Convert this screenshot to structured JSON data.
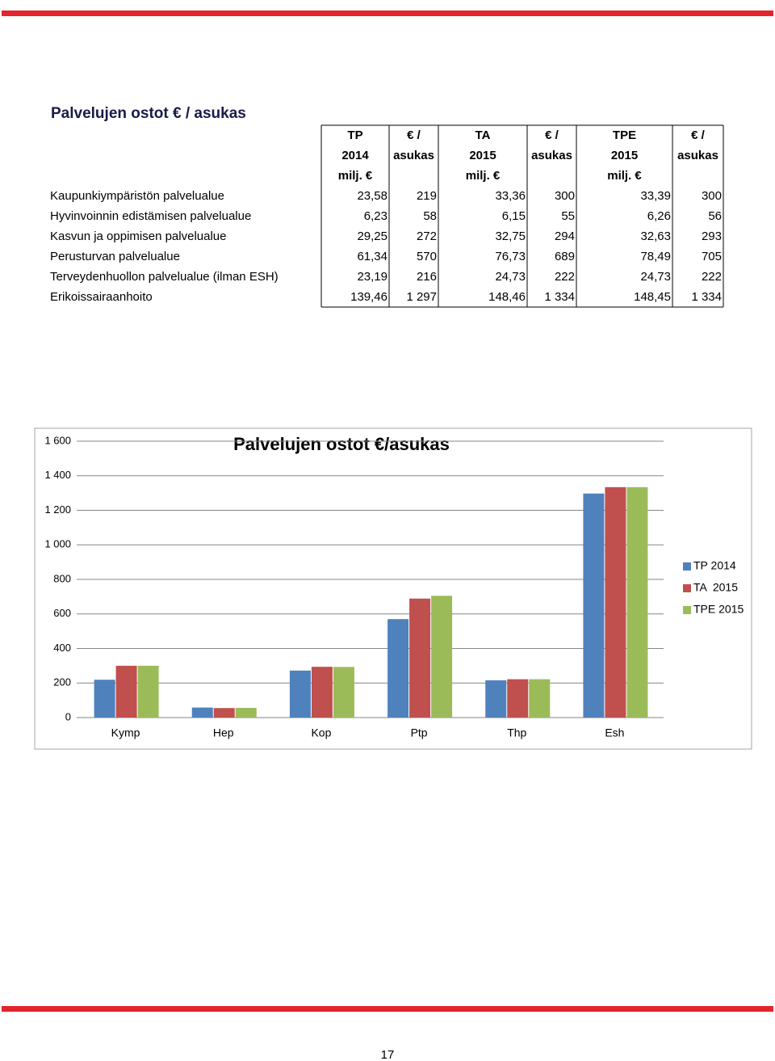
{
  "heading": "Palvelujen ostot € / asukas",
  "table": {
    "header": [
      [
        "TP",
        "2014",
        "milj. €"
      ],
      [
        "€ /",
        "asukas"
      ],
      [
        "TA",
        "2015",
        "milj. €"
      ],
      [
        "€ /",
        "asukas"
      ],
      [
        "TPE",
        "2015",
        "milj. €"
      ],
      [
        "€ /",
        "asukas"
      ]
    ],
    "rows": [
      [
        "Kaupunkiympäristön palvelualue",
        "23,58",
        "219",
        "33,36",
        "300",
        "33,39",
        "300"
      ],
      [
        "Hyvinvoinnin edistämisen palvelualue",
        "6,23",
        "58",
        "6,15",
        "55",
        "6,26",
        "56"
      ],
      [
        "Kasvun ja oppimisen palvelualue",
        "29,25",
        "272",
        "32,75",
        "294",
        "32,63",
        "293"
      ],
      [
        "Perusturvan palvelualue",
        "61,34",
        "570",
        "76,73",
        "689",
        "78,49",
        "705"
      ],
      [
        "Terveydenhuollon palvelualue (ilman ESH)",
        "23,19",
        "216",
        "24,73",
        "222",
        "24,73",
        "222"
      ],
      [
        "Erikoissairaanhoito",
        "139,46",
        "1 297",
        "148,46",
        "1 334",
        "148,45",
        "1 334"
      ]
    ]
  },
  "chart_data": {
    "type": "bar",
    "title": "Palvelujen ostot €/asukas",
    "categories": [
      "Kymp",
      "Hep",
      "Kop",
      "Ptp",
      "Thp",
      "Esh"
    ],
    "series": [
      {
        "name": "TP 2014",
        "color": "#4f81bd",
        "values": [
          219,
          58,
          272,
          570,
          216,
          1297
        ]
      },
      {
        "name": "TA  2015",
        "color": "#c0504d",
        "values": [
          300,
          55,
          294,
          689,
          222,
          1334
        ]
      },
      {
        "name": "TPE 2015",
        "color": "#9bbb59",
        "values": [
          300,
          56,
          293,
          705,
          222,
          1334
        ]
      }
    ],
    "ylim": [
      0,
      1600
    ],
    "yticks": [
      0,
      200,
      400,
      600,
      800,
      {
        "value": 1000,
        "label": "1 000"
      },
      {
        "value": 1200,
        "label": "1 200"
      },
      {
        "value": 1400,
        "label": "1 400"
      },
      {
        "value": 1600,
        "label": "1 600"
      }
    ],
    "grid": true,
    "legend": "right"
  },
  "page_number": "17"
}
